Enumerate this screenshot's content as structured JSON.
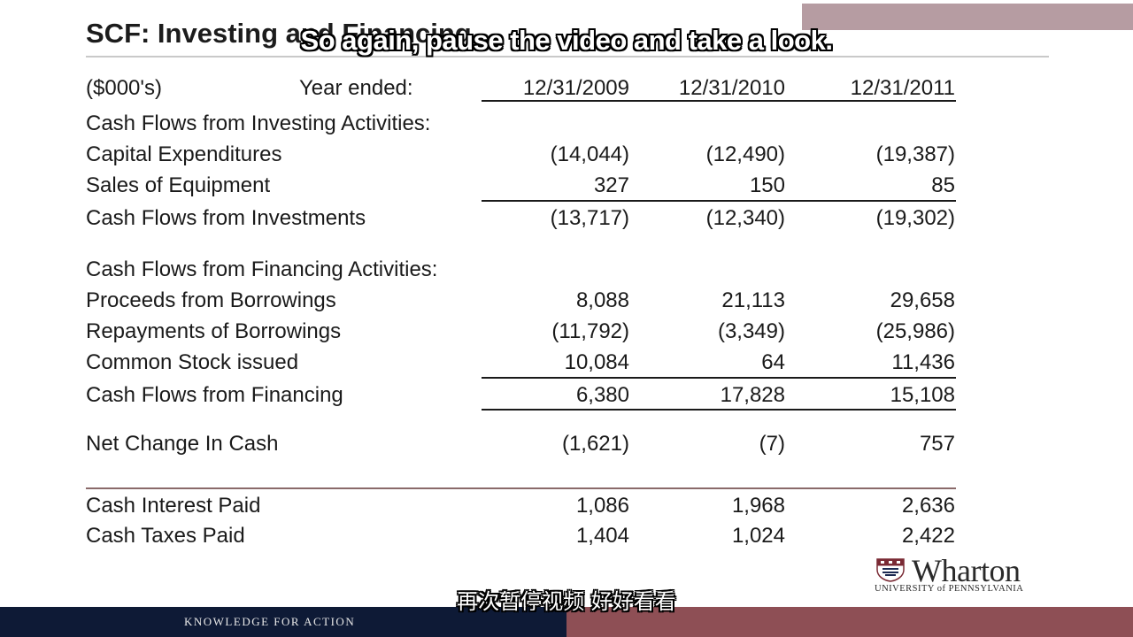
{
  "slide": {
    "title": "SCF: Investing and Financing"
  },
  "subtitles": {
    "english": "So again, pause the video and take a look.",
    "chinese": "再次暂停视频 好好看看"
  },
  "table": {
    "unit_label": "($000's)",
    "year_label": "Year ended:",
    "columns": [
      "12/31/2009",
      "12/31/2010",
      "12/31/2011"
    ],
    "investing_header": "Cash Flows from Investing Activities:",
    "capex": {
      "label": "Capital Expenditures",
      "values": [
        "(14,044)",
        "(12,490)",
        "(19,387)"
      ]
    },
    "sales_equipment": {
      "label": "Sales of Equipment",
      "values": [
        "327",
        "150",
        "85"
      ]
    },
    "investments_total": {
      "label": "Cash Flows from Investments",
      "values": [
        "(13,717)",
        "(12,340)",
        "(19,302)"
      ]
    },
    "financing_header": "Cash Flows from Financing Activities:",
    "proceeds": {
      "label": "Proceeds from Borrowings",
      "values": [
        "8,088",
        "21,113",
        "29,658"
      ]
    },
    "repayments": {
      "label": "Repayments of Borrowings",
      "values": [
        "(11,792)",
        "(3,349)",
        "(25,986)"
      ]
    },
    "stock": {
      "label": "Common Stock issued",
      "values": [
        "10,084",
        "64",
        "11,436"
      ]
    },
    "financing_total": {
      "label": "Cash Flows from Financing",
      "values": [
        "6,380",
        "17,828",
        "15,108"
      ]
    },
    "net_change": {
      "label": "Net Change In Cash",
      "values": [
        "(1,621)",
        "(7)",
        "757"
      ]
    },
    "interest": {
      "label": "Cash Interest Paid",
      "values": [
        "1,086",
        "1,968",
        "2,636"
      ]
    },
    "taxes": {
      "label": "Cash Taxes Paid",
      "values": [
        "1,404",
        "1,024",
        "2,422"
      ]
    }
  },
  "branding": {
    "logo_name": "Wharton",
    "logo_sub": "UNIVERSITY of PENNSYLVANIA",
    "tagline": "KNOWLEDGE FOR ACTION"
  },
  "colors": {
    "footer_navy": "#0e1a36",
    "footer_maroon": "#8e4f55"
  }
}
